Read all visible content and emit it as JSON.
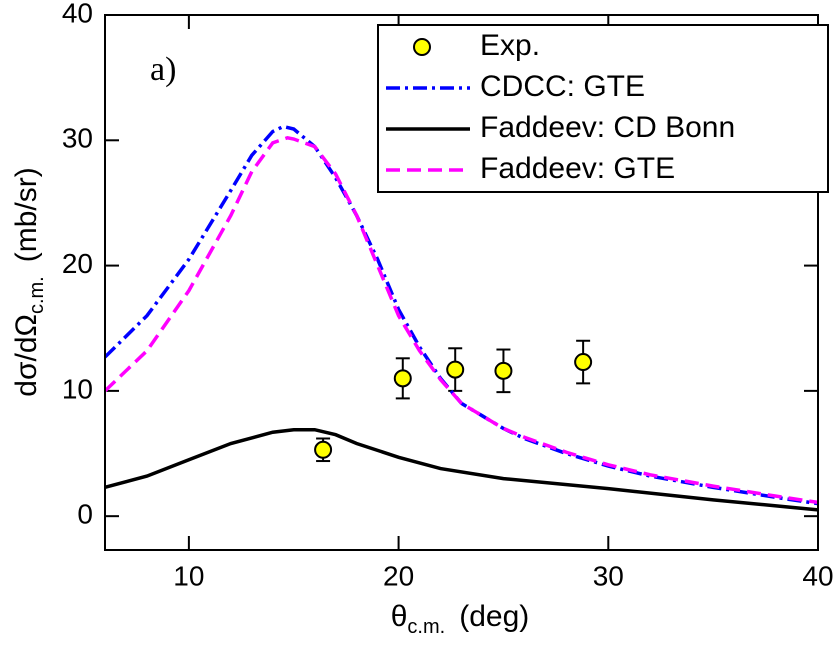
{
  "chart_data": {
    "type": "line",
    "annotation": "a)",
    "xlabel": {
      "main": "θ",
      "sub": "c.m.",
      "unit": "(deg)"
    },
    "ylabel": {
      "main": "dσ/dΩ",
      "sub": "c.m.",
      "unit": "(mb/sr)"
    },
    "xlim": [
      6,
      40
    ],
    "ylim": [
      -2.7,
      40
    ],
    "xticks": [
      10,
      20,
      30,
      40
    ],
    "yticks": [
      0,
      10,
      20,
      30,
      40
    ],
    "legend": "upper right",
    "series": [
      {
        "name": "Exp.",
        "color": "#ffff00",
        "marker": "circle",
        "x": [
          16.4,
          20.2,
          22.7,
          25.0,
          28.8
        ],
        "values": [
          5.3,
          11.0,
          11.7,
          11.6,
          12.3
        ],
        "errors": [
          0.9,
          1.6,
          1.7,
          1.7,
          1.7
        ]
      },
      {
        "name": "CDCC: GTE",
        "color": "#0000ff",
        "linestyle": "dashdot",
        "x": [
          6,
          8,
          10,
          12,
          13,
          14,
          14.5,
          15,
          16,
          17,
          18,
          19,
          20,
          21,
          22,
          23,
          24,
          25,
          26,
          28,
          30,
          32,
          35,
          38,
          40
        ],
        "values": [
          12.7,
          16,
          20.5,
          26,
          28.8,
          30.7,
          31.1,
          30.9,
          29.5,
          27,
          24,
          20.5,
          16.5,
          13.5,
          11,
          9,
          8,
          7,
          6.2,
          5,
          4,
          3.2,
          2.3,
          1.5,
          1
        ]
      },
      {
        "name": "Faddeev: CD Bonn",
        "color": "#000000",
        "linestyle": "solid",
        "x": [
          6,
          8,
          10,
          12,
          14,
          15,
          16,
          17,
          18,
          20,
          22,
          25,
          30,
          35,
          40
        ],
        "values": [
          2.3,
          3.2,
          4.5,
          5.8,
          6.7,
          6.9,
          6.9,
          6.5,
          5.8,
          4.7,
          3.8,
          3.0,
          2.2,
          1.3,
          0.5
        ]
      },
      {
        "name": "Faddeev: GTE",
        "color": "#ff00ff",
        "linestyle": "dashed",
        "x": [
          6,
          8,
          10,
          12,
          13,
          14,
          14.7,
          15,
          16,
          17,
          18,
          19,
          20,
          21,
          22,
          23,
          24,
          25,
          26,
          28,
          30,
          32,
          35,
          38,
          40
        ],
        "values": [
          10,
          13.2,
          18,
          24,
          27.5,
          29.8,
          30.2,
          30.1,
          29.5,
          27.3,
          24,
          20,
          16,
          13.2,
          10.9,
          9,
          8,
          7,
          6.3,
          5.1,
          4.1,
          3.3,
          2.4,
          1.6,
          1.1
        ]
      }
    ]
  }
}
